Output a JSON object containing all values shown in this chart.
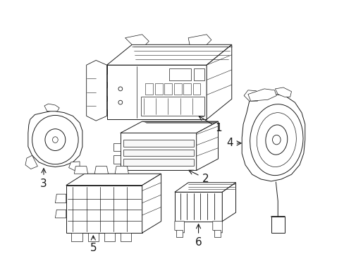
{
  "background_color": "#ffffff",
  "line_color": "#1a1a1a",
  "line_width": 0.7,
  "fig_width": 4.89,
  "fig_height": 3.6
}
